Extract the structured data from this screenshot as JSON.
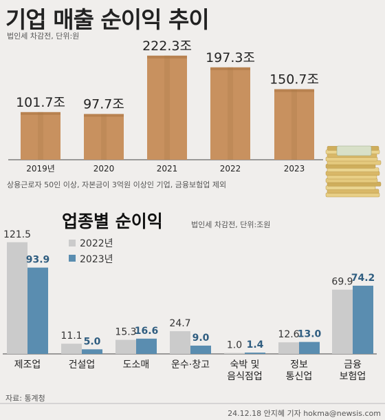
{
  "header": {
    "title": "기업 매출 순이익 추이",
    "note": "법인세 차감전, 단위:원"
  },
  "chart_data": [
    {
      "type": "bar",
      "title": "기업 매출 순이익 추이",
      "subtitle": "법인세 차감전, 단위:원",
      "categories": [
        "2019년",
        "2020",
        "2021",
        "2022",
        "2023"
      ],
      "values": [
        101.7,
        97.7,
        222.3,
        197.3,
        150.7
      ],
      "value_labels": [
        "101.7조",
        "97.7조",
        "222.3조",
        "197.3조",
        "150.7조"
      ],
      "footnote": "상용근로자 50인 이상, 자본금이 3억원 이상인 기업, 금융보험업 제외",
      "colors": {
        "bar": "#c8915f"
      }
    },
    {
      "type": "bar",
      "title": "업종별 순이익",
      "subtitle": "법인세 차감전, 단위:조원",
      "categories": [
        "제조업",
        "건설업",
        "도소매",
        "운수·창고",
        "숙박 및\n음식점업",
        "정보\n통신업",
        "금융\n보험업"
      ],
      "series": [
        {
          "name": "2022년",
          "values": [
            121.5,
            11.1,
            15.3,
            24.7,
            1.0,
            12.6,
            69.9
          ]
        },
        {
          "name": "2023년",
          "values": [
            93.9,
            5.0,
            16.6,
            9.0,
            1.4,
            13.0,
            74.2
          ]
        }
      ],
      "labels_2022": [
        "121.5",
        "11.1",
        "15.3",
        "24.7",
        "1.0",
        "12.6",
        "69.9"
      ],
      "labels_2023": [
        "93.9",
        "5.0",
        "16.6",
        "9.0",
        "1.4",
        "13.0",
        "74.2"
      ],
      "legend_position": "top-left",
      "colors": {
        "2022": "#cbcbcb",
        "2023": "#5a8db0"
      }
    }
  ],
  "footer": {
    "source": "자료: 통계청",
    "credit": "24.12.18 안지혜 기자 hokma@newsis.com"
  }
}
